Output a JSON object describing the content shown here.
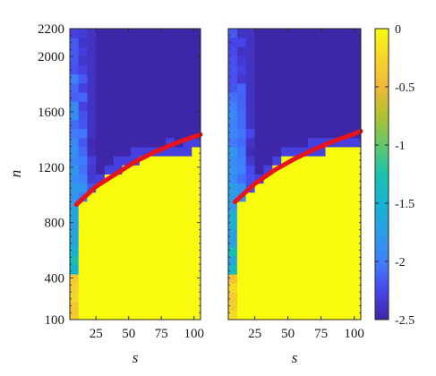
{
  "chart_data": {
    "type": "heatmap",
    "panels": [
      {
        "name": "",
        "xlabel": "s",
        "ylabel": "n",
        "xticks": [
          25,
          50,
          75,
          100
        ],
        "yticks": [
          100,
          400,
          800,
          1200,
          1600,
          2000,
          2200
        ],
        "xlim": [
          5,
          105
        ],
        "ylim": [
          100,
          2200
        ],
        "boundary_curve": {
          "color": "#e8141b",
          "x": [
            10,
            25,
            40,
            55,
            70,
            85,
            100,
            105
          ],
          "y": [
            930,
            1060,
            1150,
            1240,
            1310,
            1370,
            1420,
            1435
          ]
        },
        "transition_n": [
          590,
          930,
          1000,
          1060,
          1120,
          1170,
          1210,
          1240,
          1260,
          1290,
          1290,
          1300,
          1290,
          1310,
          1320
        ],
        "left_band_values": [
          -1.6,
          -1.9,
          -2.2
        ]
      },
      {
        "name": "",
        "xlabel": "s",
        "ylabel": "",
        "xticks": [
          25,
          50,
          75,
          100
        ],
        "yticks": [],
        "xlim": [
          5,
          105
        ],
        "ylim": [
          100,
          2200
        ],
        "boundary_curve": {
          "color": "#e8141b",
          "x": [
            10,
            25,
            40,
            55,
            70,
            85,
            100,
            105
          ],
          "y": [
            950,
            1080,
            1180,
            1260,
            1330,
            1390,
            1440,
            1460
          ]
        },
        "transition_n": [
          620,
          950,
          1020,
          1090,
          1150,
          1200,
          1250,
          1270,
          1280,
          1310,
          1300,
          1330,
          1320,
          1340,
          1350
        ],
        "left_band_values": [
          -1.6,
          -1.9,
          -2.2
        ]
      }
    ],
    "colorbar": {
      "ticks": [
        0,
        -0.5,
        -1,
        -1.5,
        -2,
        -2.5
      ],
      "labels": [
        "0",
        "-0.5",
        "-1",
        "-1.5",
        "-2",
        "-2.5"
      ],
      "range": [
        -2.5,
        0
      ],
      "colormap": "parula"
    }
  },
  "colors": {
    "curve": "#e8141b",
    "low": "#3e26a8",
    "high": "#f9fb0e"
  }
}
